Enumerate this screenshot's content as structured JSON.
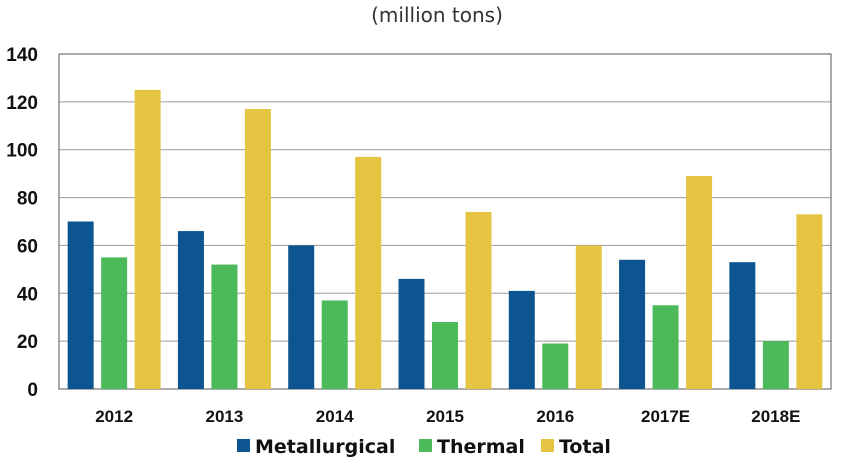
{
  "chart_data": {
    "type": "bar",
    "subtitle": "(million tons)",
    "categories": [
      "2012",
      "2013",
      "2014",
      "2015",
      "2016",
      "2017E",
      "2018E"
    ],
    "series": [
      {
        "name": "Metallurgical",
        "color": "#0d5591",
        "values": [
          70,
          66,
          60,
          46,
          41,
          54,
          53
        ]
      },
      {
        "name": "Thermal",
        "color": "#4cba5a",
        "values": [
          55,
          52,
          37,
          28,
          19,
          35,
          20
        ]
      },
      {
        "name": "Total",
        "color": "#e4c440",
        "values": [
          125,
          117,
          97,
          74,
          60,
          89,
          73
        ]
      }
    ],
    "yticks": [
      "0",
      "20",
      "40",
      "60",
      "80",
      "100",
      "120",
      "140"
    ],
    "ylim": [
      0,
      140
    ],
    "grid": true,
    "legend_position": "bottom"
  }
}
